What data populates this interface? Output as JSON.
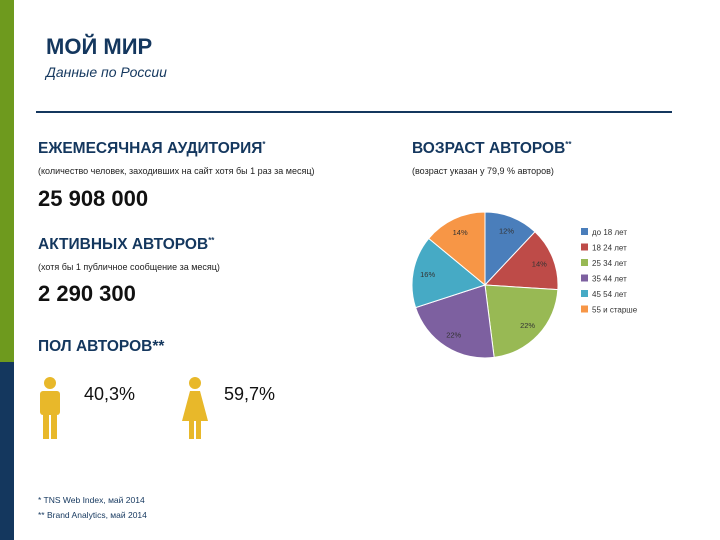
{
  "header": {
    "title": "МОЙ МИР",
    "subtitle": "Данные по России"
  },
  "audience": {
    "heading": "ЕЖЕМЕСЯЧНАЯ АУДИТОРИЯ",
    "heading_mark": "*",
    "note": "(количество человек, заходивших на сайт хотя бы 1 раз за месяц)",
    "value": "25 908 000"
  },
  "active_authors": {
    "heading": "АКТИВНЫХ АВТОРОВ",
    "heading_mark": "**",
    "note": "(хотя бы 1 публичное сообщение за месяц)",
    "value": "2 290 300"
  },
  "gender": {
    "heading": "ПОЛ АВТОРОВ**",
    "male_pct": "40,3%",
    "female_pct": "59,7%"
  },
  "age": {
    "heading": "ВОЗРАСТ АВТОРОВ",
    "heading_mark": "**",
    "note": "(возраст указан у 79,9 % авторов)"
  },
  "footnotes": [
    "* TNS Web Index, май 2014",
    "** Brand Analytics, май 2014"
  ],
  "colors": {
    "accent_green": "#6e9a1e",
    "accent_navy": "#14375e"
  },
  "chart_data": {
    "type": "pie",
    "categories": [
      "до 18 лет",
      "18 24 лет",
      "25 34 лет",
      "35 44 лет",
      "45 54 лет",
      "55 и старше"
    ],
    "values": [
      12,
      14,
      22,
      22,
      16,
      14
    ],
    "labels": [
      "12%",
      "14%",
      "22%",
      "22%",
      "16%",
      "14%"
    ],
    "colors": [
      "#4a7ebb",
      "#be4b48",
      "#98b954",
      "#7d60a0",
      "#46aac5",
      "#f79646"
    ],
    "legend": "right"
  }
}
